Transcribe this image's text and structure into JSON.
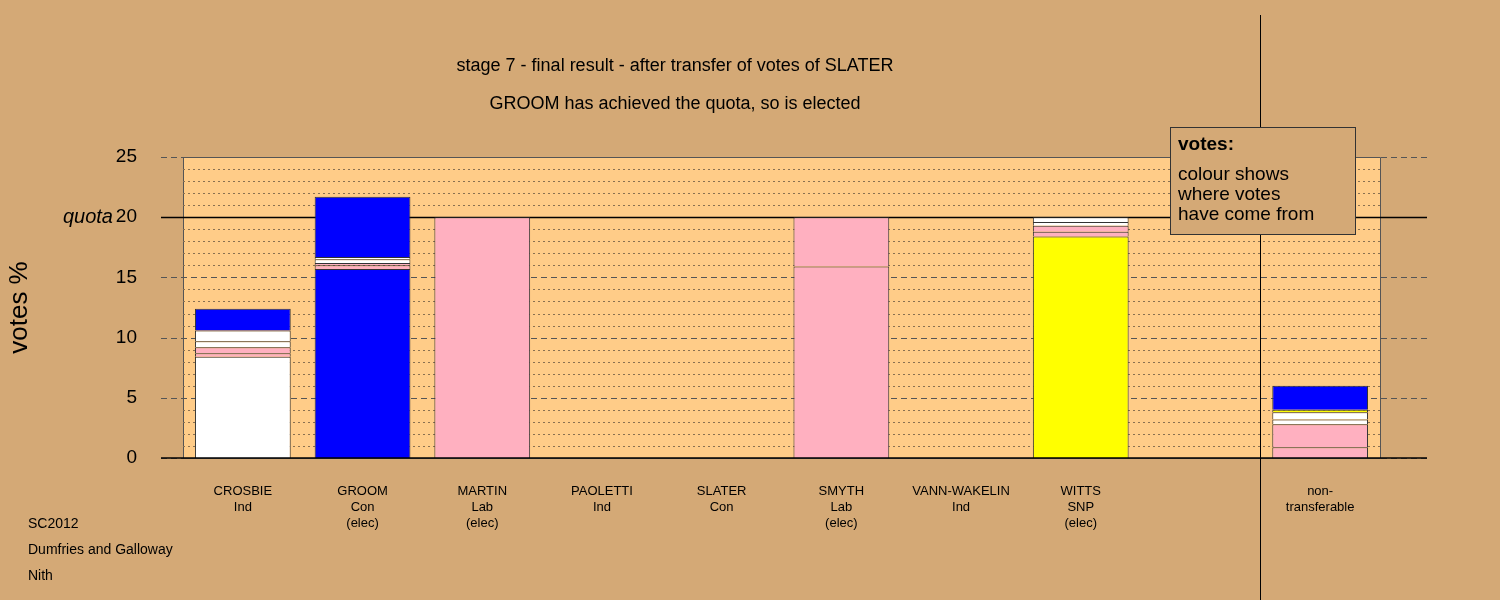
{
  "chart_data": {
    "type": "bar",
    "stacked": true,
    "title": "stage 7 - final result - after transfer of votes of SLATER",
    "subtitle": "GROOM has achieved the quota, so is elected",
    "ylabel": "votes %",
    "categories": [
      "CROSBIE\nInd",
      "GROOM\nCon\n(elec)",
      "MARTIN\nLab\n(elec)",
      "PAOLETTI\nInd",
      "SLATER\nCon",
      "SMYTH\nLab\n(elec)",
      "VANN-WAKELIN\nInd",
      "WITTS\nSNP\n(elec)",
      null,
      "non-\ntransferable"
    ],
    "series": [
      {
        "colors": [
          "#ffffff",
          "#0000ff",
          "#ffb0c0",
          "#ffffff",
          "#0000ff",
          "#ffb0c0",
          "#ffffff",
          "#ffff00",
          null,
          "#ffb0c0"
        ],
        "values": [
          8.4,
          15.7,
          20,
          0,
          0,
          15.9,
          0,
          18.4,
          null,
          0.9
        ]
      },
      {
        "colors": [
          "#ffb0c0",
          "#ffb0c0",
          null,
          null,
          null,
          "#ffb0c0",
          null,
          "#ffb0c0",
          null,
          "#ffb0c0"
        ],
        "values": [
          0.3,
          0.3,
          null,
          null,
          null,
          4.1,
          null,
          0.4,
          null,
          1.9
        ]
      },
      {
        "colors": [
          "#ffb0c0",
          "#ffb0c0",
          null,
          null,
          null,
          null,
          null,
          "#ffb0c0",
          null,
          "#ffffff"
        ],
        "values": [
          0.5,
          0.2,
          null,
          null,
          null,
          null,
          null,
          0.5,
          null,
          0.4
        ]
      },
      {
        "colors": [
          "#ffffff",
          "#ffffff",
          null,
          null,
          null,
          null,
          null,
          "#ffffff",
          null,
          "#ffffff"
        ],
        "values": [
          0.5,
          0.3,
          null,
          null,
          null,
          null,
          null,
          0.3,
          null,
          0.6
        ]
      },
      {
        "colors": [
          "#ffffff",
          "#ffffff",
          null,
          null,
          null,
          null,
          null,
          "#ffffff",
          null,
          "#ffff00"
        ],
        "values": [
          0.9,
          0.2,
          null,
          null,
          null,
          null,
          null,
          0.4,
          null,
          0.2
        ]
      },
      {
        "colors": [
          "#0000ff",
          "#0000ff",
          null,
          null,
          null,
          null,
          null,
          null,
          null,
          "#0000ff"
        ],
        "values": [
          1.8,
          5.0,
          null,
          null,
          null,
          null,
          null,
          null,
          null,
          2.0
        ]
      }
    ],
    "ylim": [
      0,
      25
    ],
    "yticks": [
      0,
      {
        "value": 1,
        "label": null
      },
      {
        "value": 2,
        "label": null
      },
      {
        "value": 3,
        "label": null
      },
      {
        "value": 4,
        "label": null
      },
      5,
      {
        "value": 6,
        "label": null
      },
      {
        "value": 7,
        "label": null
      },
      {
        "value": 8,
        "label": null
      },
      {
        "value": 9,
        "label": null
      },
      10,
      {
        "value": 11,
        "label": null
      },
      {
        "value": 12,
        "label": null
      },
      {
        "value": 13,
        "label": null
      },
      {
        "value": 14,
        "label": null
      },
      15,
      {
        "value": 16,
        "label": null
      },
      {
        "value": 17,
        "label": null
      },
      {
        "value": 18,
        "label": null
      },
      {
        "value": 19,
        "label": null
      },
      20,
      {
        "value": 21,
        "label": null
      },
      {
        "value": 22,
        "label": null
      },
      {
        "value": 23,
        "label": null
      },
      {
        "value": 24,
        "label": null
      },
      25
    ],
    "grid": "y",
    "legend": false,
    "ref_lines": [
      {
        "axis": "y",
        "value": 20,
        "label": "quota",
        "color": "#000000"
      },
      {
        "axis": "x",
        "value": "non-\ntransferable",
        "color": "#000000"
      }
    ],
    "annotations": [
      "votes:",
      "colour shows\nwhere votes\nhave come from",
      "SC2012",
      "Dumfries and Galloway",
      "Nith"
    ]
  }
}
